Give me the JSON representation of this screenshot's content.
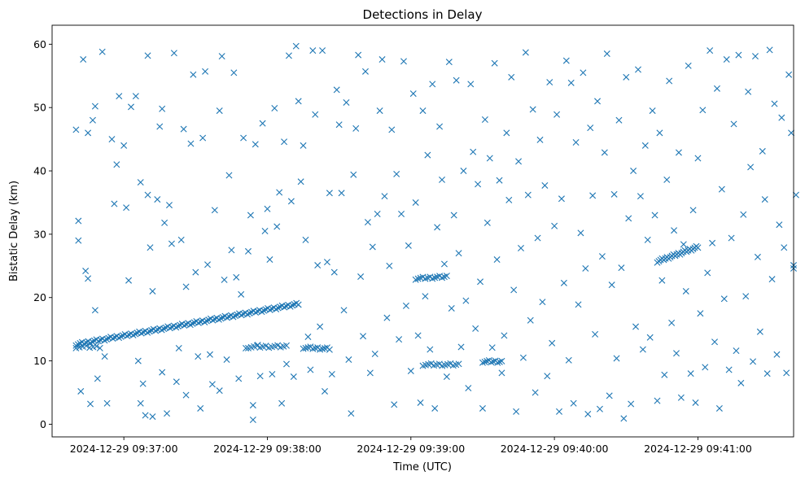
{
  "chart_data": {
    "type": "scatter",
    "title": "Detections in Delay",
    "xlabel": "Time (UTC)",
    "ylabel": "Bistatic Delay (km)",
    "marker": "x",
    "color": "#1f77b4",
    "grid": false,
    "legend": false,
    "x_unit": "time (HH:MM:SS on 2024-12-29)",
    "xlim": [
      "09:36:30",
      "09:41:40"
    ],
    "ylim": [
      -2,
      63
    ],
    "x_ticks": [
      "2024-12-29 09:37:00",
      "2024-12-29 09:38:00",
      "2024-12-29 09:39:00",
      "2024-12-29 09:40:00",
      "2024-12-29 09:41:00"
    ],
    "y_ticks": [
      "0",
      "10",
      "20",
      "30",
      "40",
      "50",
      "60"
    ],
    "tracks": [
      {
        "x_start": "09:36:40",
        "x_end": "09:38:13",
        "y_start": 12.6,
        "y_end": 19.0,
        "count": 110
      },
      {
        "x_start": "09:36:40",
        "x_end": "09:36:50",
        "y_start": 12.2,
        "y_end": 12.2,
        "count": 8
      },
      {
        "x_start": "09:37:52",
        "x_end": "09:38:08",
        "y_start": 12.2,
        "y_end": 12.3,
        "count": 14
      },
      {
        "x_start": "09:38:15",
        "x_end": "09:38:26",
        "y_start": 12.1,
        "y_end": 11.9,
        "count": 12
      },
      {
        "x_start": "09:39:02",
        "x_end": "09:39:15",
        "y_start": 23.0,
        "y_end": 23.3,
        "count": 14
      },
      {
        "x_start": "09:39:05",
        "x_end": "09:39:20",
        "y_start": 9.4,
        "y_end": 9.4,
        "count": 14
      },
      {
        "x_start": "09:39:30",
        "x_end": "09:39:38",
        "y_start": 9.9,
        "y_end": 9.9,
        "count": 10
      },
      {
        "x_start": "09:40:43",
        "x_end": "09:41:00",
        "y_start": 25.7,
        "y_end": 28.0,
        "count": 26
      }
    ],
    "points": [
      [
        "09:36:40",
        46.5
      ],
      [
        "09:36:41",
        29.0
      ],
      [
        "09:36:41",
        32.1
      ],
      [
        "09:36:42",
        5.2
      ],
      [
        "09:36:43",
        57.6
      ],
      [
        "09:36:44",
        24.2
      ],
      [
        "09:36:45",
        46.0
      ],
      [
        "09:36:45",
        23.0
      ],
      [
        "09:36:46",
        3.2
      ],
      [
        "09:36:47",
        48.0
      ],
      [
        "09:36:48",
        18.0
      ],
      [
        "09:36:48",
        50.2
      ],
      [
        "09:36:49",
        7.2
      ],
      [
        "09:36:51",
        58.8
      ],
      [
        "09:36:52",
        10.7
      ],
      [
        "09:36:53",
        3.3
      ],
      [
        "09:36:55",
        45.0
      ],
      [
        "09:36:56",
        34.8
      ],
      [
        "09:36:57",
        41.0
      ],
      [
        "09:36:58",
        51.8
      ],
      [
        "09:37:00",
        44.0
      ],
      [
        "09:37:01",
        34.2
      ],
      [
        "09:37:02",
        22.7
      ],
      [
        "09:37:03",
        50.1
      ],
      [
        "09:37:05",
        51.8
      ],
      [
        "09:37:06",
        10.0
      ],
      [
        "09:37:07",
        38.2
      ],
      [
        "09:37:07",
        3.3
      ],
      [
        "09:37:08",
        6.4
      ],
      [
        "09:37:09",
        1.4
      ],
      [
        "09:37:10",
        58.2
      ],
      [
        "09:37:10",
        36.2
      ],
      [
        "09:37:11",
        27.9
      ],
      [
        "09:37:12",
        21.0
      ],
      [
        "09:37:12",
        1.2
      ],
      [
        "09:37:14",
        35.5
      ],
      [
        "09:37:15",
        47.0
      ],
      [
        "09:37:16",
        49.8
      ],
      [
        "09:37:16",
        8.2
      ],
      [
        "09:37:17",
        31.8
      ],
      [
        "09:37:18",
        1.7
      ],
      [
        "09:37:19",
        34.6
      ],
      [
        "09:37:20",
        28.5
      ],
      [
        "09:37:21",
        58.6
      ],
      [
        "09:37:22",
        6.7
      ],
      [
        "09:37:23",
        12.0
      ],
      [
        "09:37:24",
        29.1
      ],
      [
        "09:37:25",
        46.6
      ],
      [
        "09:37:26",
        21.7
      ],
      [
        "09:37:26",
        4.6
      ],
      [
        "09:37:28",
        44.3
      ],
      [
        "09:37:29",
        55.2
      ],
      [
        "09:37:30",
        24.0
      ],
      [
        "09:37:31",
        10.7
      ],
      [
        "09:37:32",
        2.5
      ],
      [
        "09:37:33",
        45.2
      ],
      [
        "09:37:34",
        55.7
      ],
      [
        "09:37:35",
        25.2
      ],
      [
        "09:37:36",
        11.0
      ],
      [
        "09:37:37",
        6.3
      ],
      [
        "09:37:38",
        33.8
      ],
      [
        "09:37:40",
        49.5
      ],
      [
        "09:37:40",
        5.3
      ],
      [
        "09:37:41",
        58.1
      ],
      [
        "09:37:42",
        22.8
      ],
      [
        "09:37:43",
        10.2
      ],
      [
        "09:37:44",
        39.3
      ],
      [
        "09:37:45",
        27.5
      ],
      [
        "09:37:46",
        55.5
      ],
      [
        "09:37:47",
        23.2
      ],
      [
        "09:37:48",
        7.2
      ],
      [
        "09:37:49",
        20.5
      ],
      [
        "09:37:50",
        45.2
      ],
      [
        "09:37:51",
        12.0
      ],
      [
        "09:37:52",
        27.3
      ],
      [
        "09:37:53",
        33.0
      ],
      [
        "09:37:54",
        3.0
      ],
      [
        "09:37:54",
        0.7
      ],
      [
        "09:37:55",
        44.2
      ],
      [
        "09:37:56",
        12.5
      ],
      [
        "09:37:57",
        7.6
      ],
      [
        "09:37:58",
        47.5
      ],
      [
        "09:37:59",
        30.5
      ],
      [
        "09:38:00",
        34.0
      ],
      [
        "09:38:01",
        26.0
      ],
      [
        "09:38:02",
        7.9
      ],
      [
        "09:38:03",
        49.9
      ],
      [
        "09:38:04",
        31.2
      ],
      [
        "09:38:05",
        36.6
      ],
      [
        "09:38:06",
        3.3
      ],
      [
        "09:38:07",
        44.6
      ],
      [
        "09:38:08",
        9.5
      ],
      [
        "09:38:09",
        58.2
      ],
      [
        "09:38:10",
        35.2
      ],
      [
        "09:38:11",
        7.5
      ],
      [
        "09:38:12",
        59.7
      ],
      [
        "09:38:13",
        51.0
      ],
      [
        "09:38:14",
        38.3
      ],
      [
        "09:38:15",
        44.0
      ],
      [
        "09:38:16",
        29.1
      ],
      [
        "09:38:17",
        13.8
      ],
      [
        "09:38:18",
        8.6
      ],
      [
        "09:38:19",
        59.0
      ],
      [
        "09:38:20",
        48.9
      ],
      [
        "09:38:21",
        25.1
      ],
      [
        "09:38:22",
        15.4
      ],
      [
        "09:38:23",
        59.0
      ],
      [
        "09:38:24",
        5.2
      ],
      [
        "09:38:25",
        25.6
      ],
      [
        "09:38:26",
        36.5
      ],
      [
        "09:38:27",
        7.9
      ],
      [
        "09:38:28",
        24.0
      ],
      [
        "09:38:29",
        52.8
      ],
      [
        "09:38:30",
        47.3
      ],
      [
        "09:38:31",
        36.5
      ],
      [
        "09:38:32",
        18.0
      ],
      [
        "09:38:33",
        50.8
      ],
      [
        "09:38:34",
        10.2
      ],
      [
        "09:38:35",
        1.7
      ],
      [
        "09:38:36",
        39.4
      ],
      [
        "09:38:37",
        46.7
      ],
      [
        "09:38:38",
        58.3
      ],
      [
        "09:38:39",
        23.3
      ],
      [
        "09:38:40",
        13.9
      ],
      [
        "09:38:41",
        55.7
      ],
      [
        "09:38:42",
        31.9
      ],
      [
        "09:38:43",
        8.1
      ],
      [
        "09:38:44",
        28.0
      ],
      [
        "09:38:45",
        11.1
      ],
      [
        "09:38:46",
        33.2
      ],
      [
        "09:38:47",
        49.5
      ],
      [
        "09:38:48",
        57.6
      ],
      [
        "09:38:49",
        36.0
      ],
      [
        "09:38:50",
        16.8
      ],
      [
        "09:38:51",
        25.0
      ],
      [
        "09:38:52",
        46.5
      ],
      [
        "09:38:53",
        3.1
      ],
      [
        "09:38:54",
        39.5
      ],
      [
        "09:38:55",
        13.4
      ],
      [
        "09:38:56",
        33.2
      ],
      [
        "09:38:57",
        57.3
      ],
      [
        "09:38:58",
        18.7
      ],
      [
        "09:38:59",
        28.2
      ],
      [
        "09:39:00",
        8.4
      ],
      [
        "09:39:01",
        52.2
      ],
      [
        "09:39:02",
        35.0
      ],
      [
        "09:39:03",
        14.0
      ],
      [
        "09:39:04",
        3.4
      ],
      [
        "09:39:05",
        49.5
      ],
      [
        "09:39:06",
        20.2
      ],
      [
        "09:39:07",
        42.5
      ],
      [
        "09:39:08",
        11.8
      ],
      [
        "09:39:09",
        53.7
      ],
      [
        "09:39:10",
        2.5
      ],
      [
        "09:39:11",
        31.1
      ],
      [
        "09:39:12",
        47.0
      ],
      [
        "09:39:13",
        38.6
      ],
      [
        "09:39:14",
        25.3
      ],
      [
        "09:39:15",
        7.5
      ],
      [
        "09:39:16",
        57.2
      ],
      [
        "09:39:17",
        18.3
      ],
      [
        "09:39:18",
        33.0
      ],
      [
        "09:39:19",
        54.3
      ],
      [
        "09:39:20",
        27.0
      ],
      [
        "09:39:21",
        12.2
      ],
      [
        "09:39:22",
        40.0
      ],
      [
        "09:39:23",
        19.5
      ],
      [
        "09:39:24",
        5.7
      ],
      [
        "09:39:25",
        53.7
      ],
      [
        "09:39:26",
        43.0
      ],
      [
        "09:39:27",
        15.1
      ],
      [
        "09:39:28",
        37.9
      ],
      [
        "09:39:29",
        22.5
      ],
      [
        "09:39:30",
        2.5
      ],
      [
        "09:39:31",
        48.1
      ],
      [
        "09:39:32",
        31.8
      ],
      [
        "09:39:33",
        42.0
      ],
      [
        "09:39:34",
        12.1
      ],
      [
        "09:39:35",
        57.0
      ],
      [
        "09:39:36",
        26.0
      ],
      [
        "09:39:37",
        38.5
      ],
      [
        "09:39:38",
        8.1
      ],
      [
        "09:39:39",
        14.0
      ],
      [
        "09:39:40",
        46.0
      ],
      [
        "09:39:41",
        35.4
      ],
      [
        "09:39:42",
        54.8
      ],
      [
        "09:39:43",
        21.2
      ],
      [
        "09:39:44",
        2.0
      ],
      [
        "09:39:45",
        41.5
      ],
      [
        "09:39:46",
        27.8
      ],
      [
        "09:39:47",
        10.5
      ],
      [
        "09:39:48",
        58.7
      ],
      [
        "09:39:49",
        36.2
      ],
      [
        "09:39:50",
        16.4
      ],
      [
        "09:39:51",
        49.7
      ],
      [
        "09:39:52",
        5.0
      ],
      [
        "09:39:53",
        29.4
      ],
      [
        "09:39:54",
        44.9
      ],
      [
        "09:39:55",
        19.3
      ],
      [
        "09:39:56",
        37.7
      ],
      [
        "09:39:57",
        7.6
      ],
      [
        "09:39:58",
        54.0
      ],
      [
        "09:39:59",
        12.8
      ],
      [
        "09:40:00",
        31.3
      ],
      [
        "09:40:01",
        48.9
      ],
      [
        "09:40:02",
        2.0
      ],
      [
        "09:40:03",
        35.6
      ],
      [
        "09:40:04",
        22.3
      ],
      [
        "09:40:05",
        57.4
      ],
      [
        "09:40:06",
        10.1
      ],
      [
        "09:40:07",
        53.9
      ],
      [
        "09:40:08",
        3.3
      ],
      [
        "09:40:09",
        44.5
      ],
      [
        "09:40:10",
        18.9
      ],
      [
        "09:40:11",
        30.2
      ],
      [
        "09:40:12",
        55.5
      ],
      [
        "09:40:13",
        24.6
      ],
      [
        "09:40:14",
        1.6
      ],
      [
        "09:40:15",
        46.8
      ],
      [
        "09:40:16",
        36.1
      ],
      [
        "09:40:17",
        14.2
      ],
      [
        "09:40:18",
        51.0
      ],
      [
        "09:40:19",
        2.4
      ],
      [
        "09:40:20",
        26.5
      ],
      [
        "09:40:21",
        42.9
      ],
      [
        "09:40:22",
        58.5
      ],
      [
        "09:40:23",
        4.5
      ],
      [
        "09:40:24",
        22.0
      ],
      [
        "09:40:25",
        36.3
      ],
      [
        "09:40:26",
        10.4
      ],
      [
        "09:40:27",
        48.0
      ],
      [
        "09:40:28",
        24.7
      ],
      [
        "09:40:29",
        0.9
      ],
      [
        "09:40:30",
        54.8
      ],
      [
        "09:40:31",
        32.5
      ],
      [
        "09:40:32",
        3.2
      ],
      [
        "09:40:33",
        40.0
      ],
      [
        "09:40:34",
        15.4
      ],
      [
        "09:40:35",
        56.0
      ],
      [
        "09:40:36",
        36.0
      ],
      [
        "09:40:37",
        11.8
      ],
      [
        "09:40:38",
        44.0
      ],
      [
        "09:40:39",
        29.1
      ],
      [
        "09:40:40",
        13.7
      ],
      [
        "09:40:41",
        49.5
      ],
      [
        "09:40:42",
        33.0
      ],
      [
        "09:40:43",
        3.7
      ],
      [
        "09:40:44",
        46.0
      ],
      [
        "09:40:45",
        22.7
      ],
      [
        "09:40:46",
        7.8
      ],
      [
        "09:40:47",
        38.6
      ],
      [
        "09:40:48",
        54.2
      ],
      [
        "09:40:49",
        16.0
      ],
      [
        "09:40:50",
        30.6
      ],
      [
        "09:40:51",
        11.2
      ],
      [
        "09:40:52",
        42.9
      ],
      [
        "09:40:53",
        4.2
      ],
      [
        "09:40:54",
        28.4
      ],
      [
        "09:40:55",
        21.0
      ],
      [
        "09:40:56",
        56.6
      ],
      [
        "09:40:57",
        8.0
      ],
      [
        "09:40:58",
        33.8
      ],
      [
        "09:40:59",
        3.4
      ],
      [
        "09:41:00",
        42.0
      ],
      [
        "09:41:01",
        17.5
      ],
      [
        "09:41:02",
        49.6
      ],
      [
        "09:41:03",
        9.0
      ],
      [
        "09:41:04",
        23.9
      ],
      [
        "09:41:05",
        59.0
      ],
      [
        "09:41:06",
        28.6
      ],
      [
        "09:41:07",
        13.0
      ],
      [
        "09:41:08",
        53.0
      ],
      [
        "09:41:09",
        2.5
      ],
      [
        "09:41:10",
        37.1
      ],
      [
        "09:41:11",
        19.8
      ],
      [
        "09:41:12",
        57.6
      ],
      [
        "09:41:13",
        8.6
      ],
      [
        "09:41:14",
        29.4
      ],
      [
        "09:41:15",
        47.4
      ],
      [
        "09:41:16",
        11.6
      ],
      [
        "09:41:17",
        58.3
      ],
      [
        "09:41:18",
        6.5
      ],
      [
        "09:41:19",
        33.1
      ],
      [
        "09:41:20",
        20.2
      ],
      [
        "09:41:21",
        52.5
      ],
      [
        "09:41:22",
        40.6
      ],
      [
        "09:41:23",
        9.9
      ],
      [
        "09:41:24",
        58.1
      ],
      [
        "09:41:25",
        26.4
      ],
      [
        "09:41:26",
        14.6
      ],
      [
        "09:41:27",
        43.1
      ],
      [
        "09:41:28",
        35.5
      ],
      [
        "09:41:29",
        8.0
      ],
      [
        "09:41:30",
        59.1
      ],
      [
        "09:41:31",
        22.9
      ],
      [
        "09:41:32",
        50.6
      ],
      [
        "09:41:33",
        11.0
      ],
      [
        "09:41:34",
        31.5
      ],
      [
        "09:41:35",
        48.4
      ],
      [
        "09:41:36",
        27.9
      ],
      [
        "09:41:37",
        8.1
      ],
      [
        "09:41:38",
        55.2
      ],
      [
        "09:41:39",
        46.0
      ],
      [
        "09:41:40",
        25.1
      ],
      [
        "09:41:40",
        24.6
      ],
      [
        "09:41:41",
        36.2
      ]
    ]
  }
}
